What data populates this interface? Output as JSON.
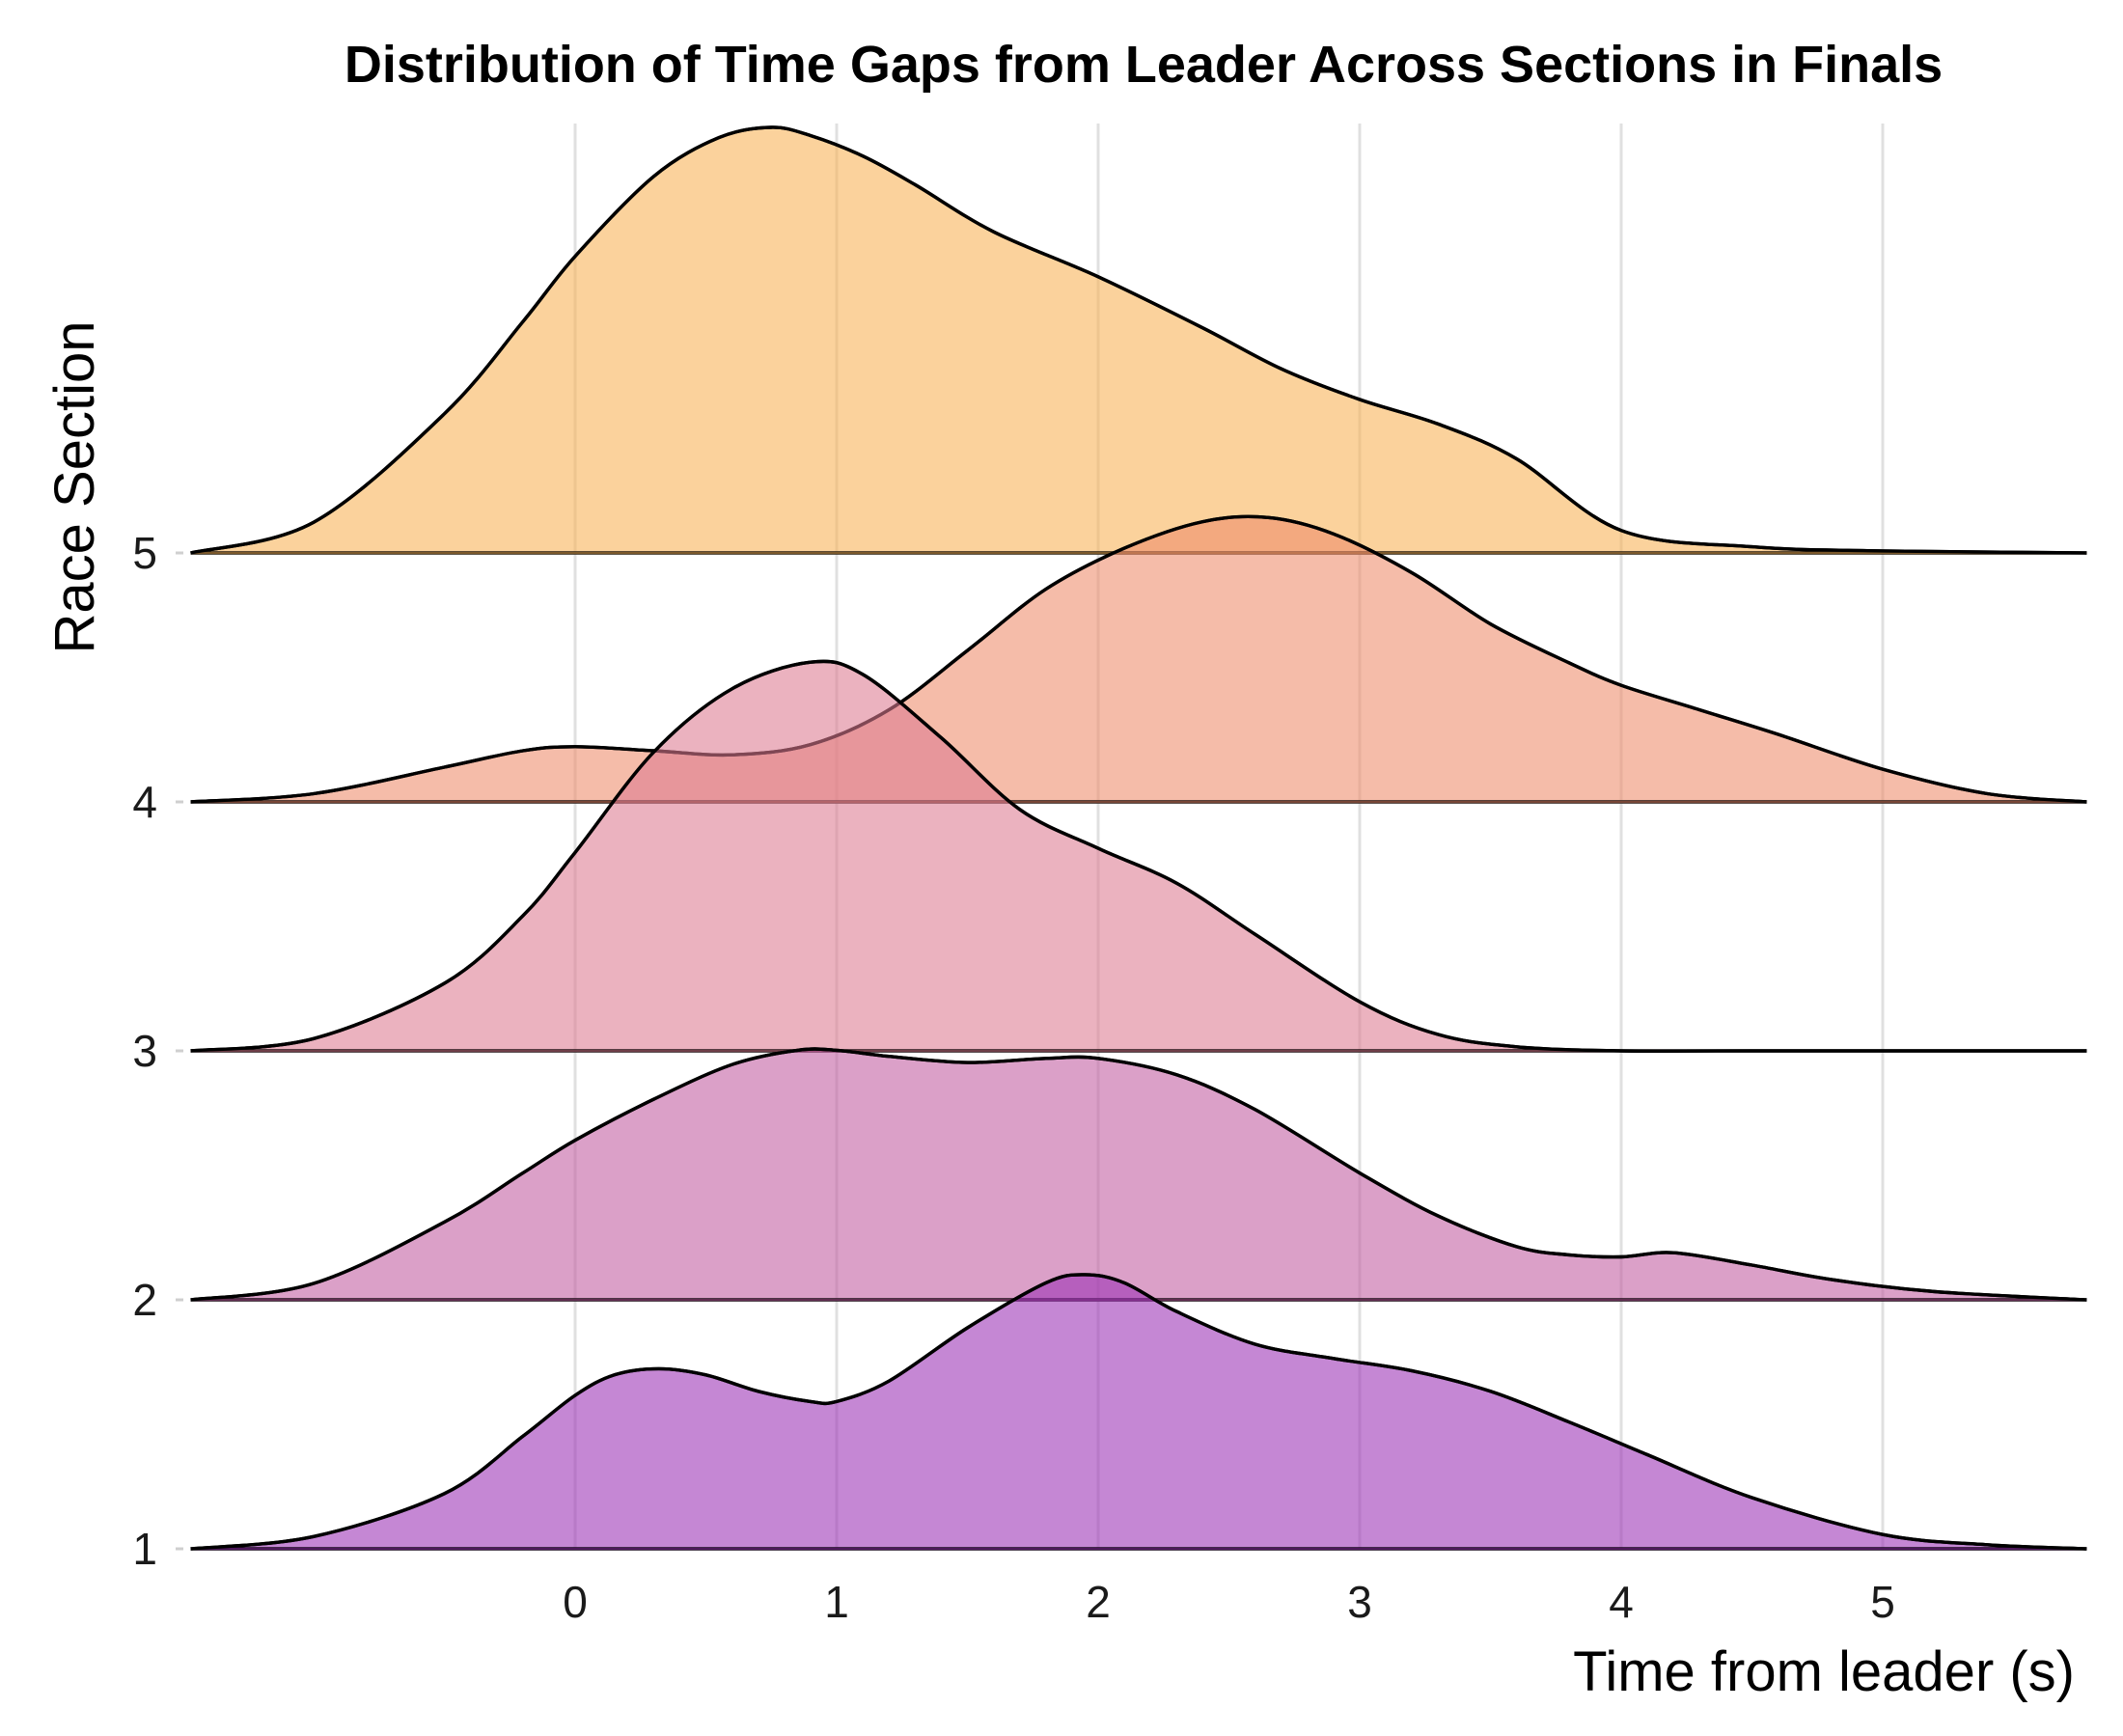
{
  "chart_data": {
    "type": "ridgeline",
    "title": "Distribution of Time Gaps from Leader Across Sections in Finals",
    "xlabel": "Time from leader (s)",
    "ylabel": "Race Section",
    "xlim": [
      -1.47,
      5.78
    ],
    "x_ticks": [
      "0",
      "1",
      "2",
      "3",
      "4",
      "5"
    ],
    "x_tick_values": [
      0,
      1,
      2,
      3,
      4,
      5
    ],
    "categories": [
      "1",
      "2",
      "3",
      "4",
      "5"
    ],
    "grid": "vertical",
    "legend": "none",
    "series": [
      {
        "section": "1",
        "color": "#9b30b5",
        "x": [
          -1.47,
          -1.0,
          -0.5,
          -0.2,
          0.0,
          0.15,
          0.32,
          0.5,
          0.7,
          0.9,
          1.0,
          1.2,
          1.5,
          1.8,
          1.95,
          2.1,
          2.3,
          2.6,
          2.9,
          3.2,
          3.5,
          3.8,
          4.1,
          4.5,
          5.0,
          5.4,
          5.78
        ],
        "density": [
          0.0,
          0.06,
          0.27,
          0.55,
          0.75,
          0.85,
          0.88,
          0.85,
          0.77,
          0.72,
          0.72,
          0.82,
          1.08,
          1.3,
          1.34,
          1.3,
          1.16,
          1.0,
          0.93,
          0.87,
          0.77,
          0.62,
          0.46,
          0.25,
          0.07,
          0.02,
          0.0
        ]
      },
      {
        "section": "2",
        "color": "#c15ba1",
        "x": [
          -1.47,
          -1.0,
          -0.5,
          -0.2,
          0.0,
          0.3,
          0.6,
          0.85,
          1.0,
          1.2,
          1.5,
          1.8,
          2.0,
          2.3,
          2.6,
          3.0,
          3.3,
          3.6,
          3.8,
          4.0,
          4.2,
          4.5,
          4.8,
          5.2,
          5.78
        ],
        "density": [
          0.0,
          0.08,
          0.38,
          0.62,
          0.78,
          0.98,
          1.15,
          1.22,
          1.22,
          1.19,
          1.16,
          1.18,
          1.18,
          1.1,
          0.93,
          0.62,
          0.41,
          0.26,
          0.22,
          0.21,
          0.23,
          0.17,
          0.1,
          0.04,
          0.0
        ]
      },
      {
        "section": "3",
        "color": "#dd7b90",
        "x": [
          -1.47,
          -1.0,
          -0.5,
          -0.2,
          0.0,
          0.3,
          0.6,
          0.9,
          1.1,
          1.4,
          1.7,
          2.0,
          2.3,
          2.6,
          3.0,
          3.3,
          3.6,
          4.0,
          4.5,
          5.78
        ],
        "density": [
          0.0,
          0.06,
          0.33,
          0.66,
          0.97,
          1.46,
          1.77,
          1.9,
          1.84,
          1.53,
          1.18,
          0.99,
          0.82,
          0.57,
          0.24,
          0.08,
          0.02,
          0.0,
          0.0,
          0.0
        ]
      },
      {
        "section": "4",
        "color": "#ee8c6b",
        "x": [
          -1.47,
          -1.0,
          -0.5,
          -0.2,
          0.0,
          0.3,
          0.6,
          0.9,
          1.2,
          1.5,
          1.8,
          2.1,
          2.4,
          2.65,
          2.9,
          3.2,
          3.5,
          3.8,
          4.0,
          4.3,
          4.6,
          5.0,
          5.4,
          5.78
        ],
        "density": [
          0.0,
          0.04,
          0.17,
          0.25,
          0.27,
          0.25,
          0.23,
          0.28,
          0.45,
          0.74,
          1.04,
          1.24,
          1.37,
          1.39,
          1.31,
          1.12,
          0.87,
          0.68,
          0.57,
          0.45,
          0.33,
          0.16,
          0.04,
          0.0
        ]
      },
      {
        "section": "5",
        "color": "#f8b155",
        "x": [
          -1.47,
          -1.0,
          -0.5,
          -0.2,
          0.0,
          0.3,
          0.55,
          0.75,
          0.9,
          1.1,
          1.3,
          1.6,
          2.0,
          2.4,
          2.7,
          3.0,
          3.3,
          3.6,
          4.0,
          4.5,
          5.0,
          5.78
        ],
        "density": [
          0.0,
          0.15,
          0.68,
          1.13,
          1.45,
          1.84,
          2.03,
          2.08,
          2.04,
          1.94,
          1.8,
          1.57,
          1.35,
          1.1,
          0.9,
          0.75,
          0.63,
          0.46,
          0.11,
          0.03,
          0.01,
          0.0
        ]
      }
    ]
  }
}
